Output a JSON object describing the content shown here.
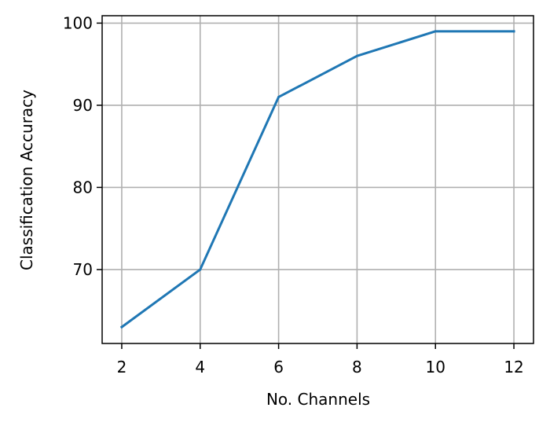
{
  "chart_data": {
    "type": "line",
    "title": "",
    "xlabel": "No. Channels",
    "ylabel": "Classification Accuracy",
    "x": [
      2,
      4,
      6,
      8,
      10,
      12
    ],
    "series": [
      {
        "values": [
          63,
          70,
          91,
          96,
          99,
          99
        ],
        "color": "#1f77b4"
      }
    ],
    "xlim": [
      1.5,
      12.5
    ],
    "ylim": [
      61.0,
      100.9
    ],
    "xticks": [
      2,
      4,
      6,
      8,
      10,
      12
    ],
    "yticks": [
      70,
      80,
      90,
      100
    ],
    "grid": true,
    "legend": "none"
  }
}
